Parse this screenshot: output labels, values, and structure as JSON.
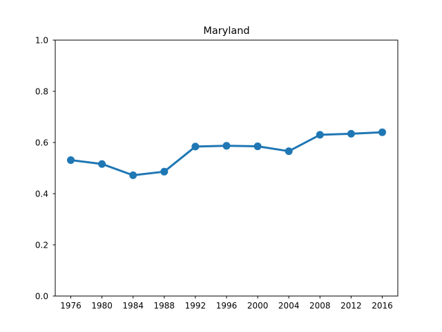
{
  "chart_data": {
    "type": "line",
    "title": "Maryland",
    "xlabel": "",
    "ylabel": "",
    "categories": [
      "1976",
      "1980",
      "1984",
      "1988",
      "1992",
      "1996",
      "2000",
      "2004",
      "2008",
      "2012",
      "2016"
    ],
    "series": [
      {
        "values": [
          0.531,
          0.516,
          0.472,
          0.486,
          0.584,
          0.587,
          0.585,
          0.566,
          0.63,
          0.634,
          0.64
        ],
        "color": "#1f77b4"
      }
    ],
    "ylim": [
      0,
      1
    ],
    "yticks": [
      "0.0",
      "0.2",
      "0.4",
      "0.6",
      "0.8",
      "1.0"
    ],
    "grid": false,
    "legend": "none"
  }
}
